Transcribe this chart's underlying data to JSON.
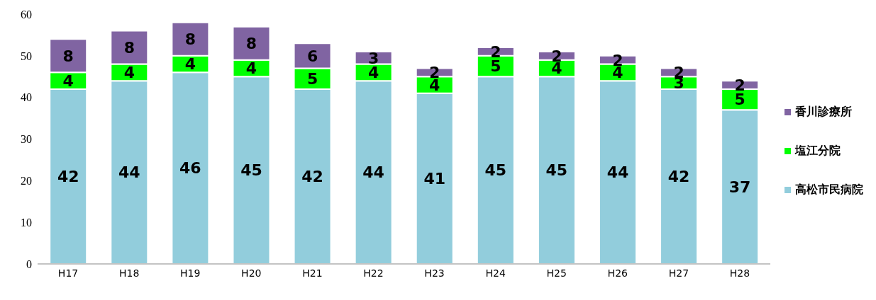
{
  "chart_data": {
    "type": "bar",
    "stacked": true,
    "categories": [
      "H17",
      "H18",
      "H19",
      "H20",
      "H21",
      "H22",
      "H23",
      "H24",
      "H25",
      "H26",
      "H27",
      "H28"
    ],
    "series": [
      {
        "name": "高松市民病院",
        "color": "#92cddc",
        "values": [
          42,
          44,
          46,
          45,
          42,
          44,
          41,
          45,
          45,
          44,
          42,
          37
        ]
      },
      {
        "name": "塩江分院",
        "color": "#00ff00",
        "values": [
          4,
          4,
          4,
          4,
          5,
          4,
          4,
          5,
          4,
          4,
          3,
          5
        ]
      },
      {
        "name": "香川診療所",
        "color": "#8064a2",
        "values": [
          8,
          8,
          8,
          8,
          6,
          3,
          2,
          2,
          2,
          2,
          2,
          2
        ]
      }
    ],
    "ylim": [
      0,
      60
    ],
    "yticks": [
      0,
      10,
      20,
      30,
      40,
      50,
      60
    ],
    "grid": false,
    "legend": "right",
    "data_labels": true
  }
}
